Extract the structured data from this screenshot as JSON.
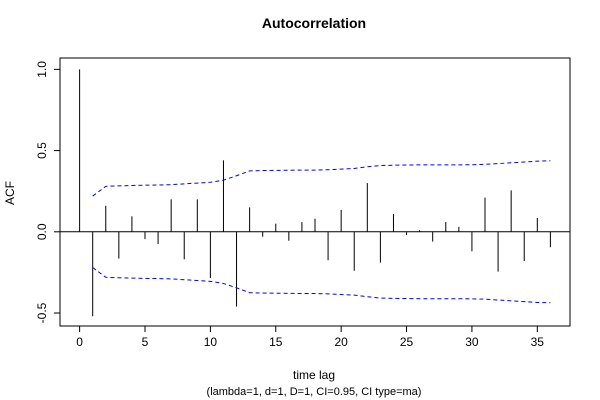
{
  "chart_data": {
    "type": "bar",
    "title": "Autocorrelation",
    "xlabel": "time lag",
    "ylabel": "ACF",
    "subtitle": "(lambda=1, d=1, D=1, CI=0.95, CI type=ma)",
    "xlim": [
      -1.5,
      37.5
    ],
    "ylim": [
      -0.58,
      1.07
    ],
    "x_ticks": [
      0,
      5,
      10,
      15,
      20,
      25,
      30,
      35
    ],
    "y_ticks": [
      -0.5,
      0.0,
      0.5,
      1.0
    ],
    "y_tick_labels": [
      "-0.5",
      "0.0",
      "0.5",
      "1.0"
    ],
    "colors": {
      "bars": "#000000",
      "ci": "#0000ff",
      "zero_line": "#000000",
      "frame": "#000000"
    },
    "lags": [
      0,
      1,
      2,
      3,
      4,
      5,
      6,
      7,
      8,
      9,
      10,
      11,
      12,
      13,
      14,
      15,
      16,
      17,
      18,
      19,
      20,
      21,
      22,
      23,
      24,
      25,
      26,
      27,
      28,
      29,
      30,
      31,
      32,
      33,
      34,
      35,
      36
    ],
    "acf": [
      1.0,
      -0.52,
      0.16,
      -0.165,
      0.095,
      -0.045,
      -0.075,
      0.2,
      -0.17,
      0.2,
      -0.285,
      0.44,
      -0.46,
      0.15,
      -0.03,
      0.05,
      -0.055,
      0.06,
      0.08,
      -0.175,
      0.135,
      -0.24,
      0.3,
      -0.19,
      0.11,
      -0.02,
      0.01,
      -0.06,
      0.06,
      0.03,
      -0.12,
      0.21,
      -0.245,
      0.255,
      -0.18,
      0.085,
      -0.095
    ],
    "ci_lags": [
      1,
      2,
      3,
      4,
      5,
      6,
      7,
      8,
      9,
      10,
      11,
      12,
      13,
      14,
      15,
      16,
      17,
      18,
      19,
      20,
      21,
      22,
      23,
      24,
      25,
      26,
      27,
      28,
      29,
      30,
      31,
      32,
      33,
      34,
      35,
      36
    ],
    "ci_upper": [
      0.22,
      0.28,
      0.283,
      0.285,
      0.287,
      0.288,
      0.29,
      0.295,
      0.3,
      0.305,
      0.318,
      0.345,
      0.375,
      0.377,
      0.378,
      0.379,
      0.38,
      0.38,
      0.382,
      0.386,
      0.39,
      0.4,
      0.408,
      0.41,
      0.411,
      0.412,
      0.412,
      0.412,
      0.412,
      0.413,
      0.415,
      0.42,
      0.425,
      0.43,
      0.435,
      0.437
    ],
    "ci_lower": [
      -0.22,
      -0.28,
      -0.283,
      -0.285,
      -0.287,
      -0.288,
      -0.29,
      -0.295,
      -0.3,
      -0.305,
      -0.318,
      -0.345,
      -0.375,
      -0.377,
      -0.378,
      -0.379,
      -0.38,
      -0.38,
      -0.382,
      -0.386,
      -0.39,
      -0.4,
      -0.408,
      -0.41,
      -0.411,
      -0.412,
      -0.412,
      -0.412,
      -0.412,
      -0.413,
      -0.415,
      -0.42,
      -0.425,
      -0.43,
      -0.435,
      -0.437
    ]
  }
}
